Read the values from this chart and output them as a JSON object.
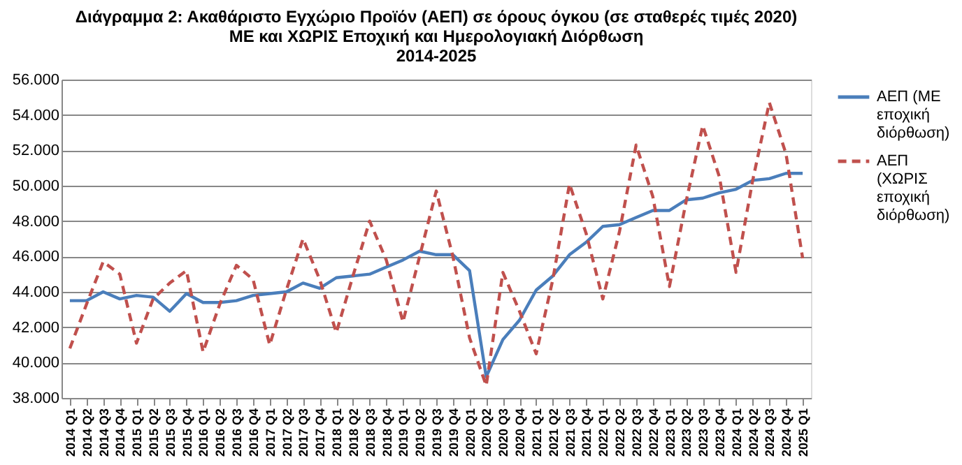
{
  "chart_data": {
    "type": "line",
    "title": [
      "Διάγραμμα 2: Ακαθάριστο Εγχώριο Προϊόν (ΑΕΠ) σε όρους όγκου (σε σταθερές τιμές 2020)",
      "ΜΕ και ΧΩΡΙΣ Εποχική και Ημερολογιακή Διόρθωση",
      "2014-2025"
    ],
    "categories": [
      "2014 Q1",
      "2014 Q2",
      "2014 Q3",
      "2014 Q4",
      "2015 Q1",
      "2015 Q2",
      "2015 Q3",
      "2015 Q4",
      "2016 Q1",
      "2016 Q2",
      "2016 Q3",
      "2016 Q4",
      "2017 Q1",
      "2017 Q2",
      "2017 Q3",
      "2017 Q4",
      "2018 Q1",
      "2018 Q2",
      "2018 Q3",
      "2018 Q4",
      "2019 Q1",
      "2019 Q2",
      "2019 Q3",
      "2019 Q4",
      "2020 Q1",
      "2020 Q2",
      "2020 Q3",
      "2020 Q4",
      "2021 Q1",
      "2021 Q2",
      "2021 Q3",
      "2021 Q4",
      "2022 Q1",
      "2022 Q2",
      "2022 Q3",
      "2022 Q4",
      "2023 Q1",
      "2023 Q2",
      "2023 Q3",
      "2023 Q4",
      "2024 Q1",
      "2024 Q2",
      "2024 Q3",
      "2024 Q4",
      "2025 Q1"
    ],
    "series": [
      {
        "name": "ΑΕΠ (ΜΕ εποχική διόρθωση)",
        "color": "#4a7ebb",
        "line_style": "solid",
        "values": [
          43500,
          43500,
          44000,
          43600,
          43800,
          43700,
          42900,
          43900,
          43400,
          43400,
          43500,
          43800,
          43900,
          44000,
          44500,
          44200,
          44800,
          44900,
          45000,
          45400,
          45800,
          46300,
          46100,
          46100,
          45200,
          39200,
          41300,
          42400,
          44100,
          44900,
          46100,
          46800,
          47700,
          47800,
          48200,
          48600,
          48600,
          49200,
          49300,
          49600,
          49800,
          50300,
          50400,
          50700,
          50700
        ]
      },
      {
        "name": "ΑΕΠ (ΧΩΡΙΣ εποχική διόρθωση)",
        "color": "#c0504d",
        "line_style": "dashed",
        "values": [
          40800,
          43300,
          45700,
          45000,
          41100,
          43600,
          44500,
          45200,
          40600,
          43300,
          45500,
          44700,
          41000,
          44100,
          47000,
          44700,
          41700,
          44900,
          48000,
          45800,
          42300,
          46000,
          49700,
          46000,
          41400,
          38700,
          45100,
          42900,
          40500,
          44700,
          50100,
          47300,
          43600,
          47400,
          52300,
          49400,
          44300,
          49100,
          53400,
          50500,
          45100,
          50300,
          54700,
          51800,
          45900
        ]
      }
    ],
    "ylim": [
      38000,
      56000
    ],
    "yticks": [
      {
        "value": 38000,
        "label": "38.000"
      },
      {
        "value": 40000,
        "label": "40.000"
      },
      {
        "value": 42000,
        "label": "42.000"
      },
      {
        "value": 44000,
        "label": "44.000"
      },
      {
        "value": 46000,
        "label": "46.000"
      },
      {
        "value": 48000,
        "label": "48.000"
      },
      {
        "value": 50000,
        "label": "50.000"
      },
      {
        "value": 52000,
        "label": "52.000"
      },
      {
        "value": 54000,
        "label": "54.000"
      },
      {
        "value": 56000,
        "label": "56.000"
      }
    ],
    "grid": "y",
    "legend": "right",
    "marker": "none"
  }
}
